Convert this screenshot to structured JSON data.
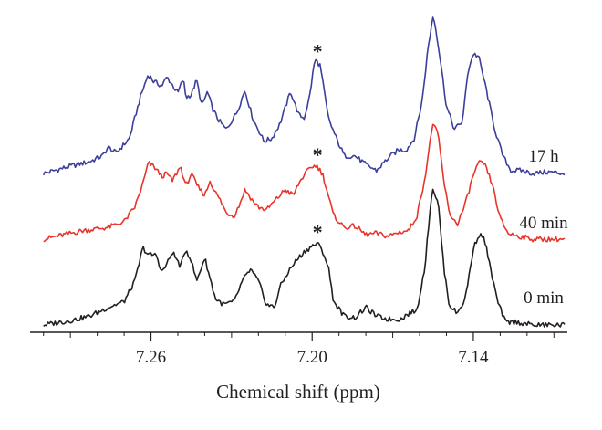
{
  "chart_data": {
    "type": "line",
    "title": "",
    "xlabel": "Chemical shift (ppm)",
    "ylabel": "",
    "x_reversed": true,
    "xlim": [
      7.305,
      7.105
    ],
    "x_ticks": [
      7.26,
      7.2,
      7.14
    ],
    "x_tick_labels": [
      "7.26",
      "7.20",
      "7.14"
    ],
    "y_axis_shown": false,
    "grid": false,
    "legend": "none",
    "marker_symbol": "*",
    "marked_peak_ppm": 7.198,
    "series": [
      {
        "name": "17 h",
        "color": "#3b3f9a",
        "baseline": 0.0,
        "x": [
          7.3,
          7.29,
          7.283,
          7.278,
          7.276,
          7.273,
          7.268,
          7.264,
          7.261,
          7.259,
          7.256,
          7.254,
          7.25,
          7.248,
          7.247,
          7.245,
          7.243,
          7.241,
          7.239,
          7.237,
          7.235,
          7.232,
          7.228,
          7.225,
          7.222,
          7.22,
          7.218,
          7.215,
          7.212,
          7.208,
          7.205,
          7.203,
          7.201,
          7.199,
          7.197,
          7.196,
          7.194,
          7.191,
          7.188,
          7.184,
          7.18,
          7.176,
          7.172,
          7.168,
          7.165,
          7.162,
          7.159,
          7.157,
          7.155,
          7.154,
          7.152,
          7.15,
          7.147,
          7.144,
          7.142,
          7.14,
          7.138,
          7.135,
          7.132,
          7.129,
          7.126,
          7.122,
          7.118,
          7.112,
          7.106
        ],
        "y": [
          0.0,
          0.05,
          0.08,
          0.12,
          0.18,
          0.14,
          0.24,
          0.52,
          0.68,
          0.63,
          0.6,
          0.66,
          0.55,
          0.65,
          0.52,
          0.54,
          0.64,
          0.46,
          0.56,
          0.44,
          0.37,
          0.3,
          0.42,
          0.57,
          0.37,
          0.3,
          0.22,
          0.24,
          0.34,
          0.56,
          0.4,
          0.38,
          0.52,
          0.78,
          0.74,
          0.62,
          0.38,
          0.24,
          0.12,
          0.12,
          0.06,
          0.02,
          0.1,
          0.16,
          0.16,
          0.24,
          0.5,
          0.84,
          1.08,
          1.0,
          0.74,
          0.46,
          0.3,
          0.36,
          0.7,
          0.82,
          0.8,
          0.56,
          0.3,
          0.12,
          0.02,
          0.02,
          0.0,
          0.01,
          0.0
        ]
      },
      {
        "name": "40 min",
        "color": "#e8342b",
        "baseline": 0.0,
        "x": [
          7.3,
          7.285,
          7.276,
          7.27,
          7.266,
          7.263,
          7.261,
          7.259,
          7.256,
          7.254,
          7.252,
          7.249,
          7.247,
          7.245,
          7.243,
          7.24,
          7.238,
          7.236,
          7.234,
          7.232,
          7.229,
          7.227,
          7.225,
          7.222,
          7.22,
          7.217,
          7.213,
          7.21,
          7.207,
          7.205,
          7.203,
          7.2,
          7.198,
          7.196,
          7.194,
          7.192,
          7.188,
          7.184,
          7.18,
          7.176,
          7.172,
          7.167,
          7.164,
          7.161,
          7.158,
          7.156,
          7.155,
          7.153,
          7.151,
          7.149,
          7.146,
          7.143,
          7.14,
          7.138,
          7.136,
          7.133,
          7.13,
          7.127,
          7.123,
          7.118,
          7.112,
          7.106
        ],
        "y": [
          0.0,
          0.06,
          0.08,
          0.12,
          0.22,
          0.38,
          0.52,
          0.5,
          0.43,
          0.45,
          0.4,
          0.5,
          0.36,
          0.45,
          0.37,
          0.3,
          0.4,
          0.32,
          0.26,
          0.18,
          0.16,
          0.24,
          0.34,
          0.26,
          0.22,
          0.2,
          0.28,
          0.34,
          0.3,
          0.38,
          0.44,
          0.5,
          0.5,
          0.44,
          0.3,
          0.16,
          0.08,
          0.09,
          0.03,
          0.04,
          0.02,
          0.05,
          0.06,
          0.16,
          0.42,
          0.68,
          0.8,
          0.7,
          0.4,
          0.18,
          0.1,
          0.24,
          0.44,
          0.52,
          0.52,
          0.38,
          0.14,
          0.04,
          0.02,
          0.0,
          0.0,
          0.0
        ]
      },
      {
        "name": "0 min",
        "color": "#231f20",
        "baseline": 0.0,
        "x": [
          7.3,
          7.29,
          7.283,
          7.276,
          7.27,
          7.266,
          7.263,
          7.261,
          7.258,
          7.256,
          7.254,
          7.252,
          7.249,
          7.247,
          7.245,
          7.243,
          7.24,
          7.238,
          7.236,
          7.233,
          7.229,
          7.226,
          7.223,
          7.22,
          7.217,
          7.214,
          7.212,
          7.209,
          7.206,
          7.203,
          7.2,
          7.198,
          7.196,
          7.194,
          7.192,
          7.188,
          7.184,
          7.18,
          7.176,
          7.172,
          7.167,
          7.164,
          7.161,
          7.158,
          7.156,
          7.155,
          7.153,
          7.151,
          7.149,
          7.146,
          7.143,
          7.14,
          7.138,
          7.136,
          7.134,
          7.131,
          7.128,
          7.124,
          7.118,
          7.112,
          7.106
        ],
        "y": [
          0.0,
          0.03,
          0.06,
          0.12,
          0.16,
          0.3,
          0.53,
          0.48,
          0.48,
          0.36,
          0.42,
          0.5,
          0.4,
          0.52,
          0.44,
          0.3,
          0.46,
          0.32,
          0.18,
          0.14,
          0.16,
          0.3,
          0.38,
          0.3,
          0.14,
          0.12,
          0.26,
          0.36,
          0.44,
          0.5,
          0.54,
          0.56,
          0.5,
          0.4,
          0.16,
          0.06,
          0.05,
          0.12,
          0.06,
          0.04,
          0.04,
          0.08,
          0.1,
          0.4,
          0.82,
          0.94,
          0.82,
          0.4,
          0.14,
          0.08,
          0.18,
          0.52,
          0.62,
          0.6,
          0.42,
          0.16,
          0.02,
          0.02,
          0.0,
          0.0,
          0.0
        ]
      }
    ]
  }
}
